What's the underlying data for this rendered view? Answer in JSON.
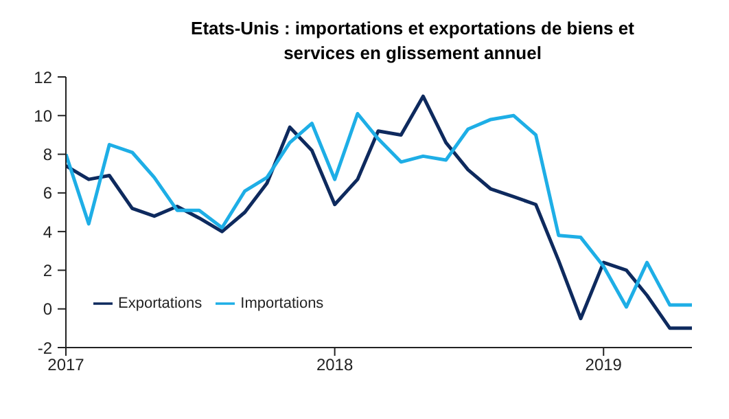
{
  "chart_data": {
    "type": "line",
    "title": "Etats-Unis : importations et exportations de biens et services en glissement annuel",
    "x": [
      "2017-01",
      "2017-02",
      "2017-03",
      "2017-04",
      "2017-05",
      "2017-06",
      "2017-07",
      "2017-08",
      "2017-09",
      "2017-10",
      "2017-11",
      "2017-12",
      "2018-01",
      "2018-02",
      "2018-03",
      "2018-04",
      "2018-05",
      "2018-06",
      "2018-07",
      "2018-08",
      "2018-09",
      "2018-10",
      "2018-11",
      "2018-12",
      "2019-01",
      "2019-02",
      "2019-03",
      "2019-04",
      "2019-05"
    ],
    "series": [
      {
        "name": "Exportations",
        "color": "#0e2a5e",
        "values": [
          7.4,
          6.7,
          6.9,
          5.2,
          4.8,
          5.3,
          4.7,
          4.0,
          5.0,
          6.5,
          9.4,
          8.2,
          5.4,
          6.7,
          9.2,
          9.0,
          11.0,
          8.6,
          7.2,
          6.2,
          5.8,
          5.4,
          2.5,
          -0.5,
          2.4,
          2.0,
          0.7,
          -1.0,
          -1.0
        ]
      },
      {
        "name": "Importations",
        "color": "#1eaee6",
        "values": [
          8.0,
          4.4,
          8.5,
          8.1,
          6.8,
          5.1,
          5.1,
          4.2,
          6.1,
          6.8,
          8.6,
          9.6,
          6.7,
          10.1,
          8.8,
          7.6,
          7.9,
          7.7,
          9.3,
          9.8,
          10.0,
          9.0,
          3.8,
          3.7,
          2.2,
          0.1,
          2.4,
          0.2,
          0.2
        ]
      }
    ],
    "xlim": [
      "2017-01",
      "2019-05"
    ],
    "xticks": [
      {
        "value": "2017-01",
        "label": "2017"
      },
      {
        "value": "2018-01",
        "label": "2018"
      },
      {
        "value": "2019-01",
        "label": "2019"
      }
    ],
    "ylim": [
      -2,
      12
    ],
    "yticks": [
      -2,
      0,
      2,
      4,
      6,
      8,
      10,
      12
    ],
    "legend": "bottom left",
    "marker": "none",
    "line_style": "solid"
  }
}
